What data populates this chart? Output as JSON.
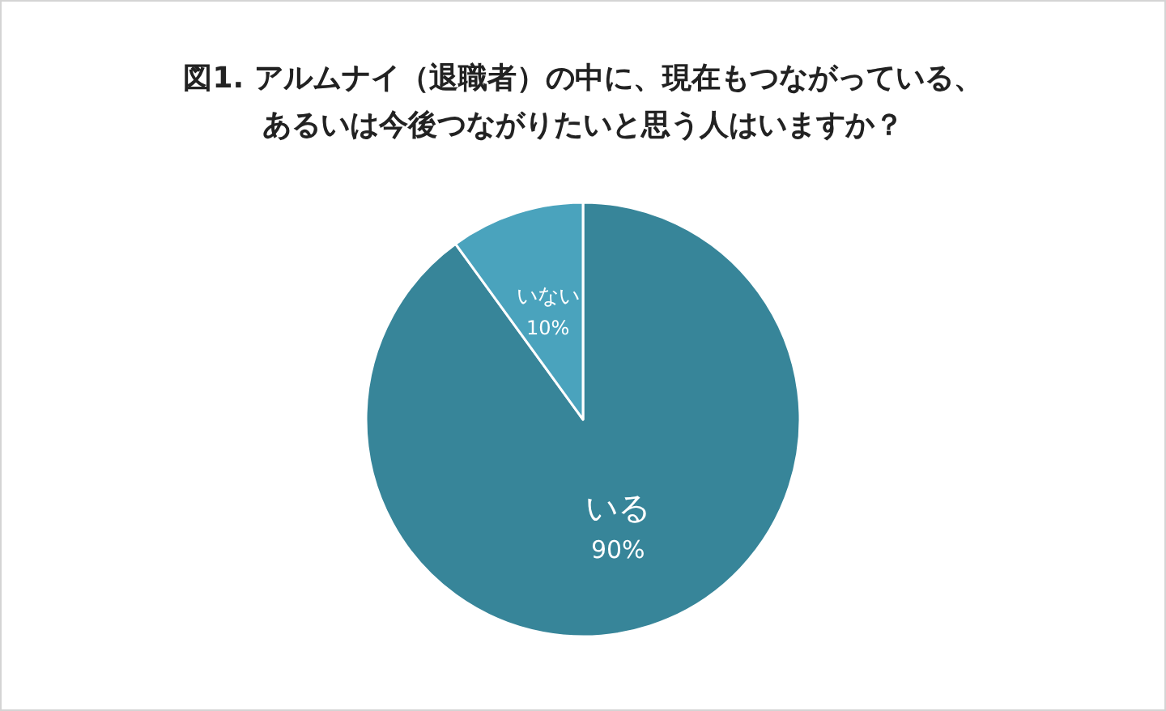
{
  "chart_data": {
    "type": "pie",
    "title": "図1. アルムナイ（退職者）の中に、現在もつながっている、あるいは今後つながりたいと思う人はいますか？",
    "categories": [
      "いる",
      "いない"
    ],
    "values": [
      90,
      10
    ],
    "colors": [
      "#378599",
      "#4aa3bd"
    ],
    "value_labels": [
      "90%",
      "10%"
    ]
  }
}
